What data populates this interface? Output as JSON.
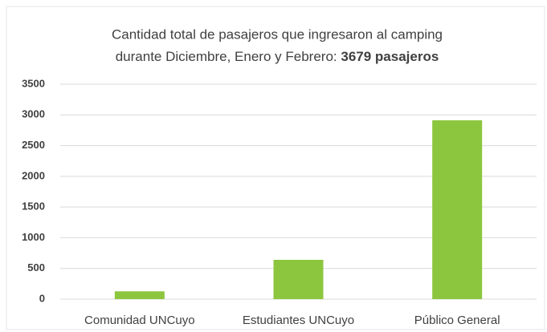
{
  "chart_data": {
    "type": "bar",
    "title": [
      "Cantidad total de pasajeros que ingresaron al camping",
      "durante Diciembre, Enero y Febrero:"
    ],
    "title_total": "3679 pasajeros",
    "categories": [
      "Comunidad UNCuyo",
      "Estudiantes UNCuyo",
      "Público General"
    ],
    "values": [
      127,
      640,
      2912
    ],
    "color": "#8cc63e",
    "ylim": [
      0,
      3500
    ],
    "yticks": [
      0,
      500,
      1000,
      1500,
      2000,
      2500,
      3000,
      3500
    ],
    "grid": true
  }
}
